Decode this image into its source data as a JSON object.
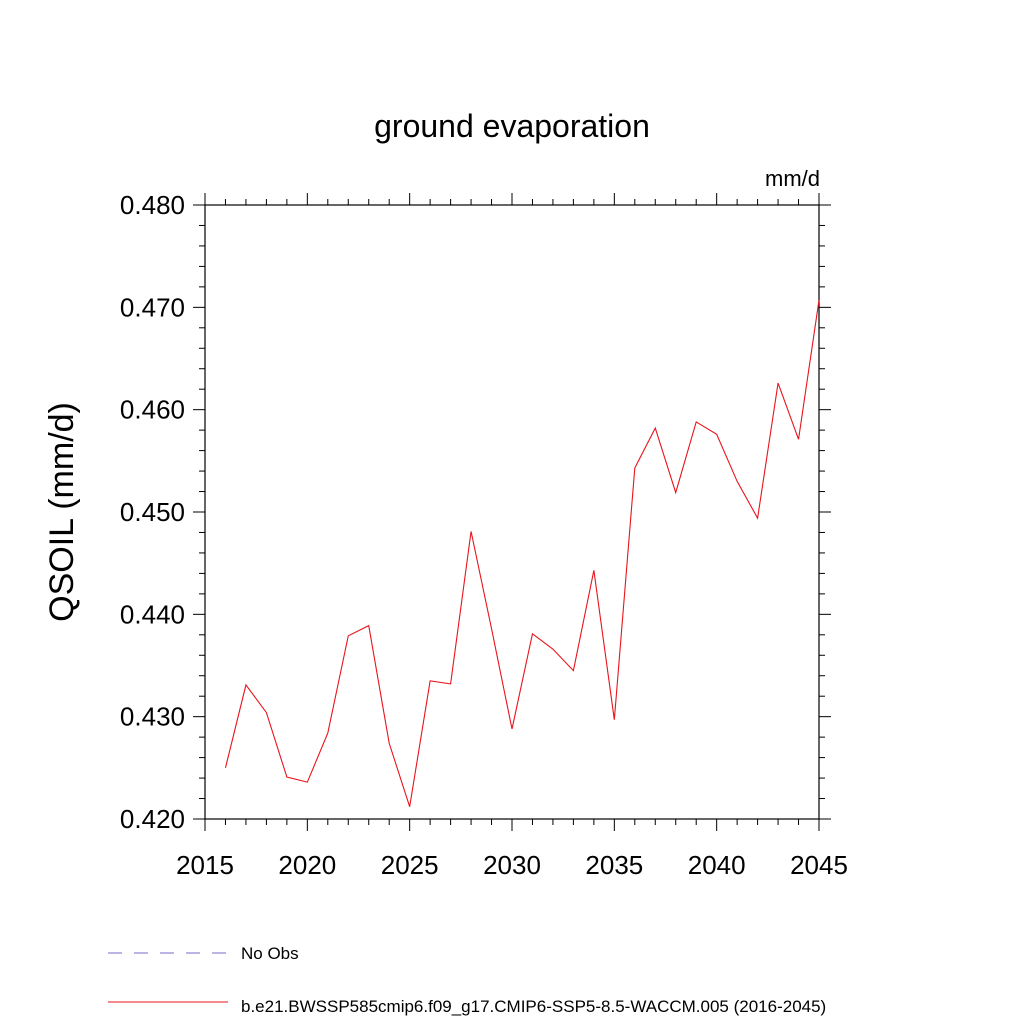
{
  "chart_data": {
    "type": "line",
    "title": "ground evaporation",
    "units_label": "mm/d",
    "ylabel": "QSOIL  (mm/d)",
    "xlabel": "",
    "xlim": [
      2015,
      2045
    ],
    "ylim": [
      0.42,
      0.48
    ],
    "x_ticks": [
      2015,
      2020,
      2025,
      2030,
      2035,
      2040,
      2045
    ],
    "x_tick_labels": [
      "2015",
      "2020",
      "2025",
      "2030",
      "2035",
      "2040",
      "2045"
    ],
    "y_ticks": [
      0.42,
      0.43,
      0.44,
      0.45,
      0.46,
      0.47,
      0.48
    ],
    "y_tick_labels": [
      "0.420",
      "0.430",
      "0.440",
      "0.450",
      "0.460",
      "0.470",
      "0.480"
    ],
    "grid": false,
    "legend_position": "bottom",
    "legend": [
      {
        "label": "No Obs",
        "color": "#7b68c8",
        "dash": "dashed"
      },
      {
        "label": "b.e21.BWSSP585cmip6.f09_g17.CMIP6-SSP5-8.5-WACCM.005 (2016-2045)",
        "color": "#e8141c",
        "dash": "solid"
      }
    ],
    "series": [
      {
        "name": "b.e21.BWSSP585cmip6.f09_g17.CMIP6-SSP5-8.5-WACCM.005 (2016-2045)",
        "color": "#e8141c",
        "x": [
          2016,
          2017,
          2018,
          2019,
          2020,
          2021,
          2022,
          2023,
          2024,
          2025,
          2026,
          2027,
          2028,
          2029,
          2030,
          2031,
          2032,
          2033,
          2034,
          2035,
          2036,
          2037,
          2038,
          2039,
          2040,
          2041,
          2042,
          2043,
          2044,
          2045
        ],
        "values": [
          0.425,
          0.4331,
          0.4304,
          0.4241,
          0.4236,
          0.4284,
          0.4379,
          0.4389,
          0.4274,
          0.4212,
          0.4335,
          0.4332,
          0.4481,
          0.4386,
          0.4288,
          0.4381,
          0.4366,
          0.4345,
          0.4443,
          0.4297,
          0.4543,
          0.4582,
          0.4519,
          0.4588,
          0.4576,
          0.453,
          0.4494,
          0.4626,
          0.4571,
          0.4707
        ]
      }
    ]
  }
}
